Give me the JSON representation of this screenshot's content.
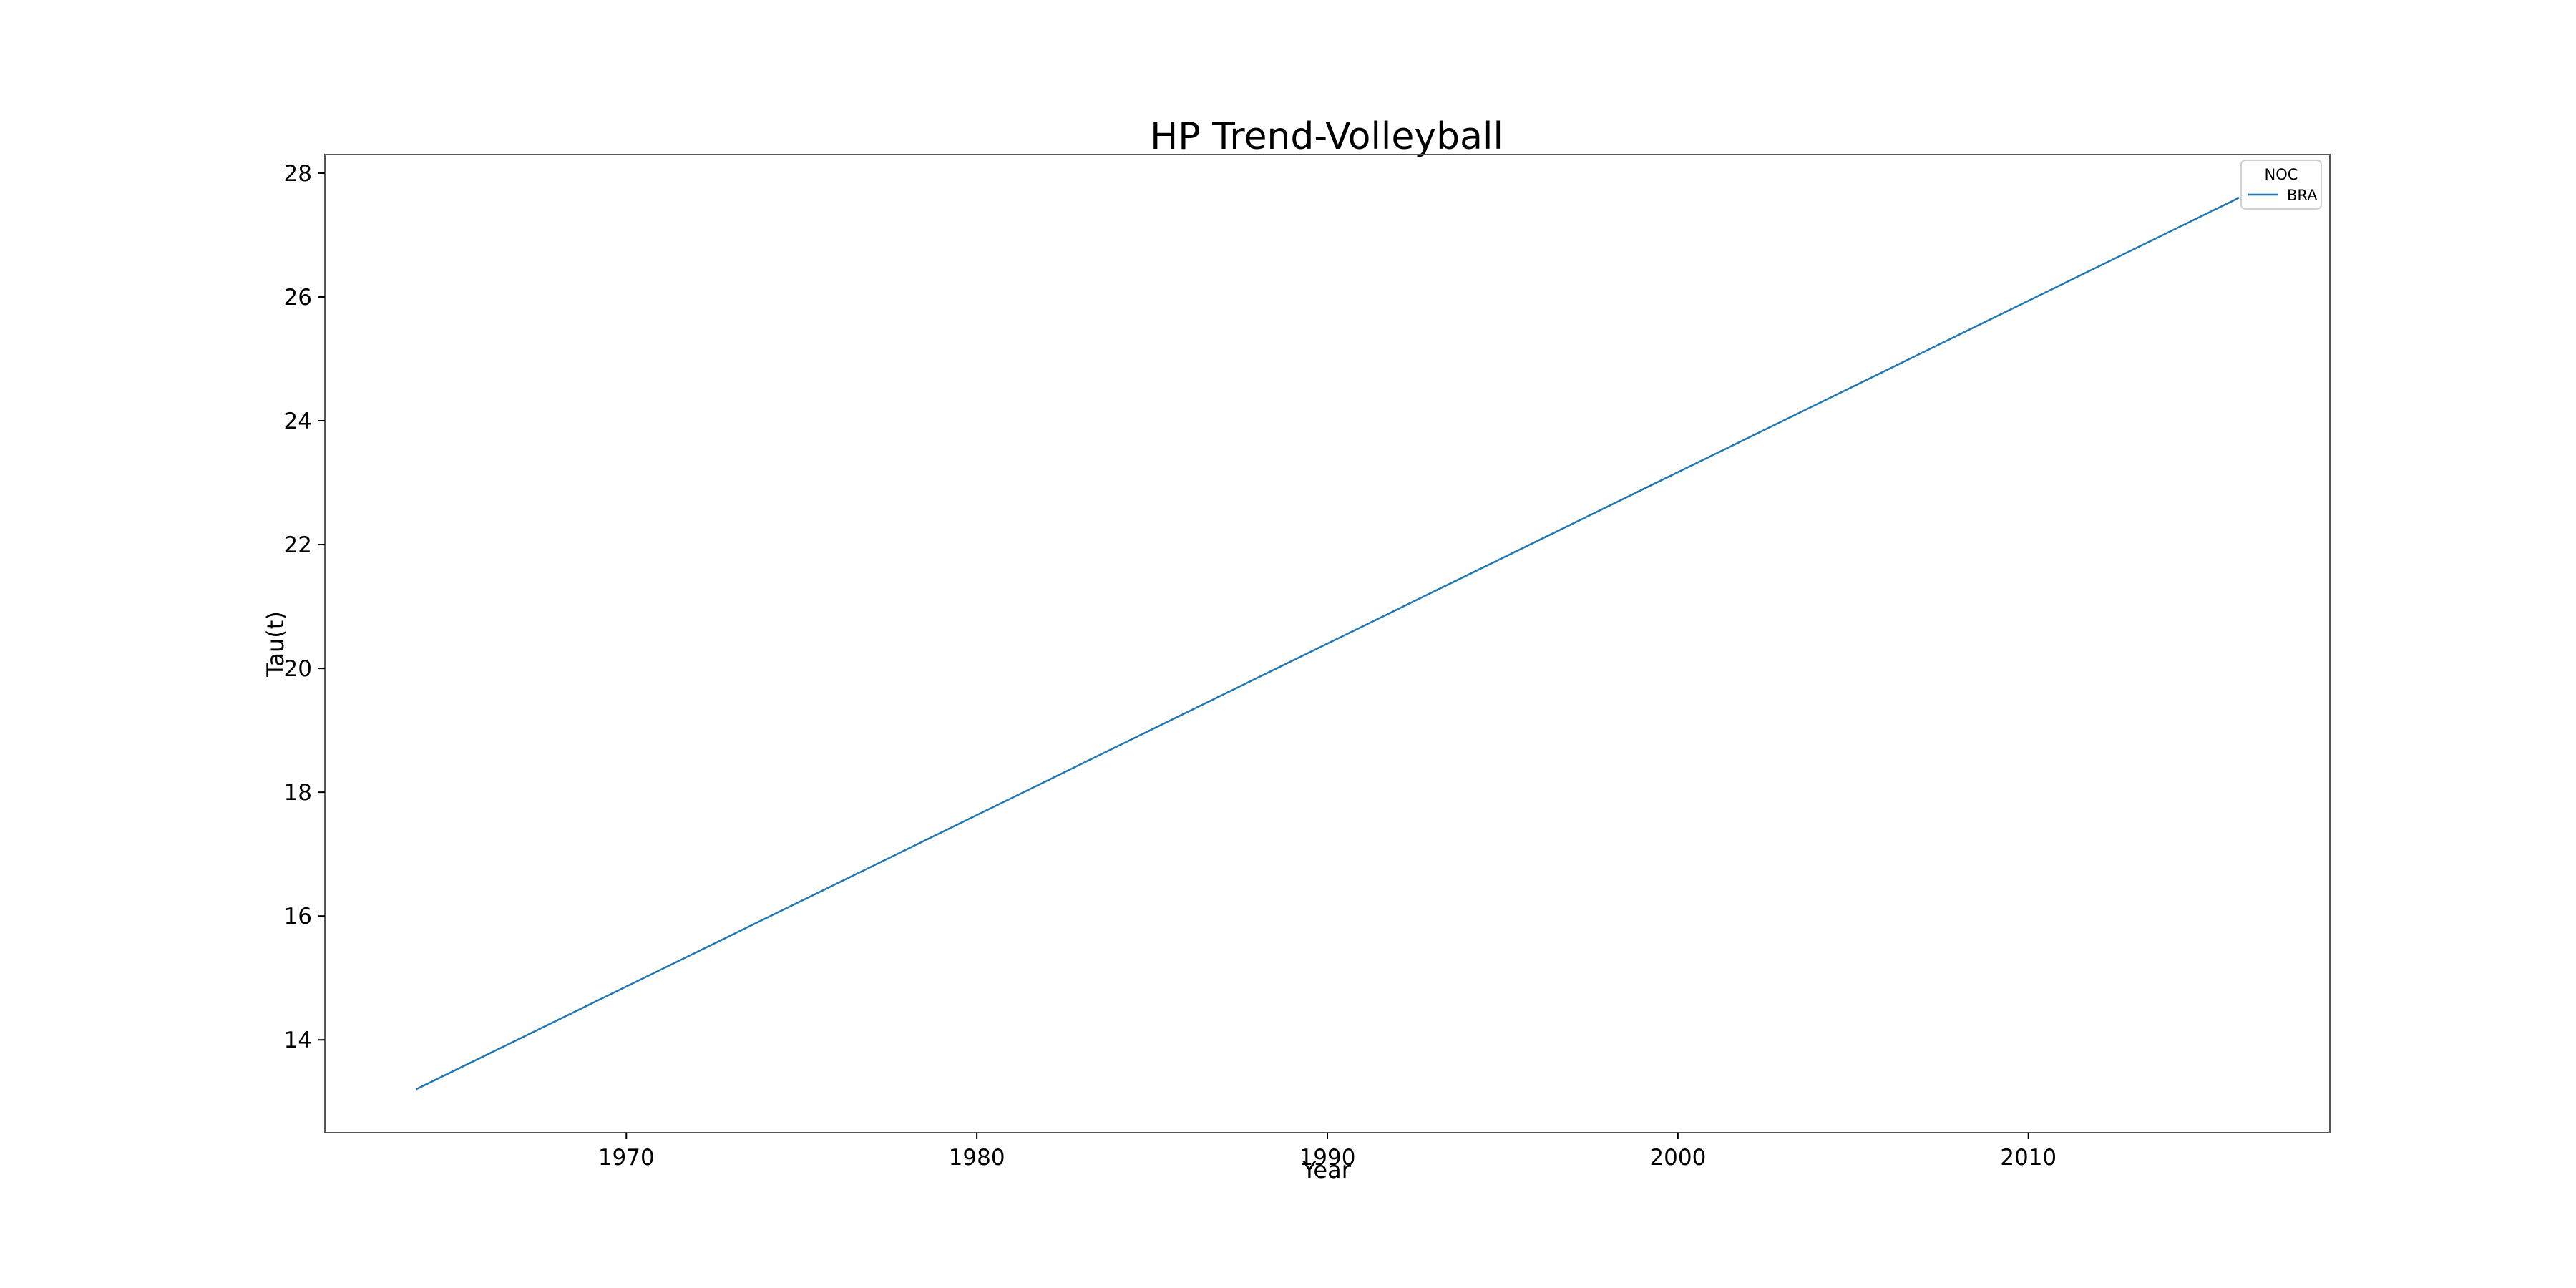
{
  "chart_data": {
    "type": "line",
    "title": "HP Trend-Volleyball",
    "xlabel": "Year",
    "ylabel": "Tau(t)",
    "xlim": [
      1961.4,
      2018.6
    ],
    "ylim": [
      12.5,
      28.3
    ],
    "x_ticks": [
      1970,
      1980,
      1990,
      2000,
      2010
    ],
    "y_ticks": [
      14,
      16,
      18,
      20,
      22,
      24,
      26,
      28
    ],
    "grid": false,
    "legend": {
      "title": "NOC",
      "position": "upper right"
    },
    "series": [
      {
        "name": "BRA",
        "color": "#1f77b4",
        "x": [
          1964,
          2016
        ],
        "y": [
          13.2,
          27.6
        ]
      }
    ]
  }
}
